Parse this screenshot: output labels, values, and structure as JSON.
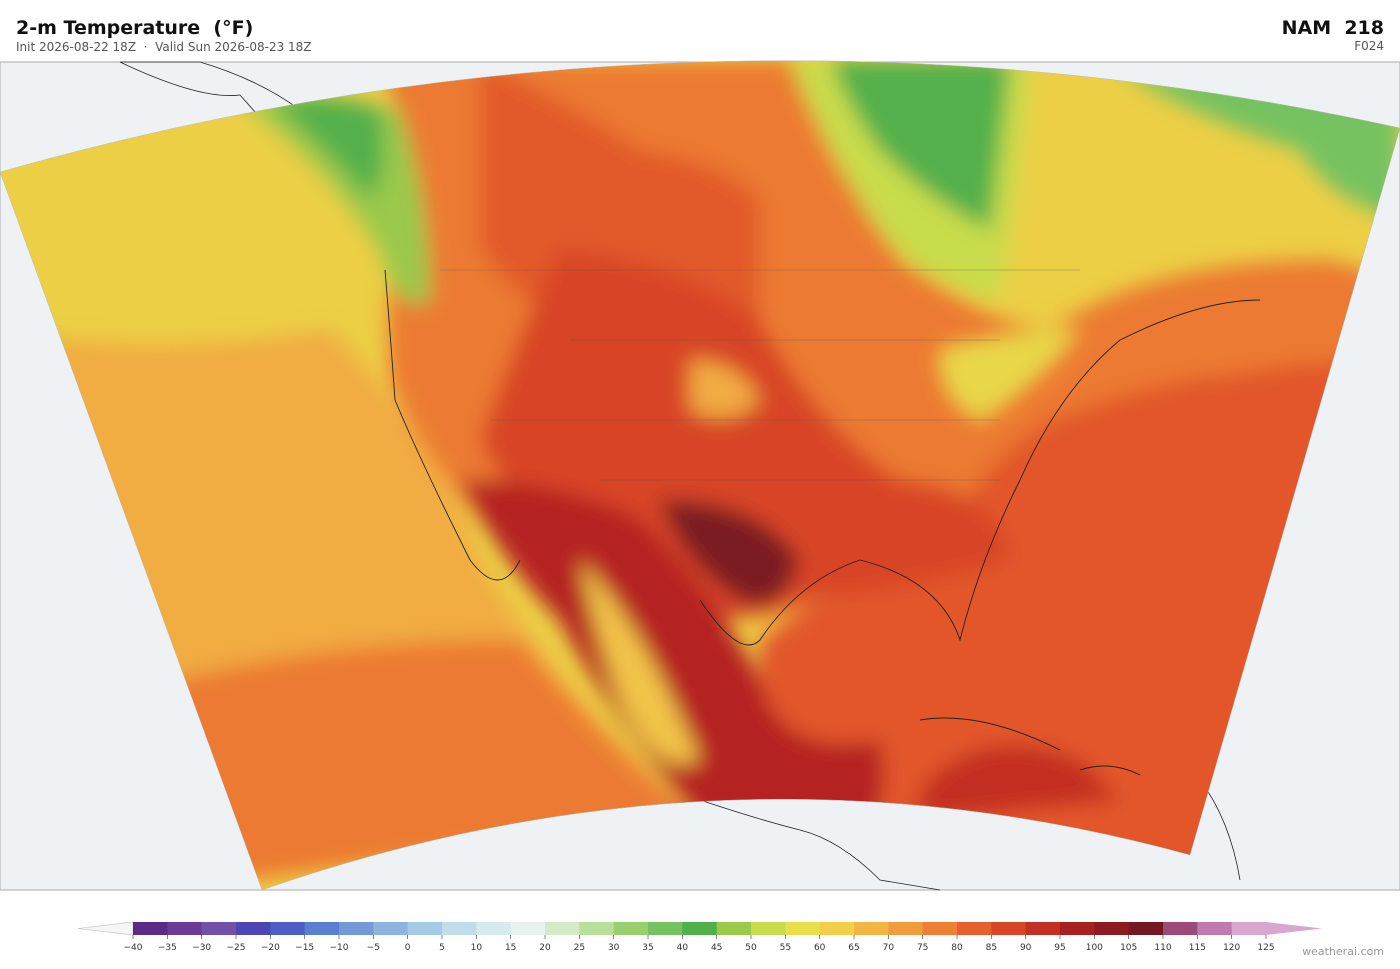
{
  "header": {
    "title": "2-m Temperature  (°F)",
    "subtitle": "Init 2026-08-22 18Z  ·  Valid Sun 2026-08-23 18Z",
    "model": "NAM  218",
    "forecast_hour": "F024"
  },
  "colorbar": {
    "ticks": [
      {
        "value": -40,
        "label": "−40"
      },
      {
        "value": -35,
        "label": "−35"
      },
      {
        "value": -30,
        "label": "−30"
      },
      {
        "value": -25,
        "label": "−25"
      },
      {
        "value": -20,
        "label": "−20"
      },
      {
        "value": -15,
        "label": "−15"
      },
      {
        "value": -10,
        "label": "−10"
      },
      {
        "value": -5,
        "label": "−5"
      },
      0,
      5,
      10,
      15,
      20,
      25,
      30,
      35,
      40,
      45,
      50,
      55,
      60,
      65,
      70,
      75,
      80,
      85,
      90,
      95,
      100,
      105,
      110,
      115,
      120,
      125
    ],
    "colors": [
      "#5b2a86",
      "#6b3a96",
      "#7251a8",
      "#4c47b5",
      "#4d5fc4",
      "#5b7fcf",
      "#7399d6",
      "#8cb4de",
      "#a6cbe6",
      "#c0dde9",
      "#d6ebef",
      "#e6f3ee",
      "#d4ebc8",
      "#b8e09a",
      "#98d070",
      "#76c260",
      "#52b04c",
      "#9ac94c",
      "#c9dc4c",
      "#e8e04a",
      "#f2cf48",
      "#f2b743",
      "#f19d3e",
      "#ee7f35",
      "#e5602d",
      "#d84427",
      "#c32f23",
      "#a8201f",
      "#8c1a1f",
      "#741822",
      "#9c4a7a",
      "#c07ab0",
      "#d8a6cf"
    ]
  },
  "footer": {
    "credit": "weatherai.com"
  }
}
